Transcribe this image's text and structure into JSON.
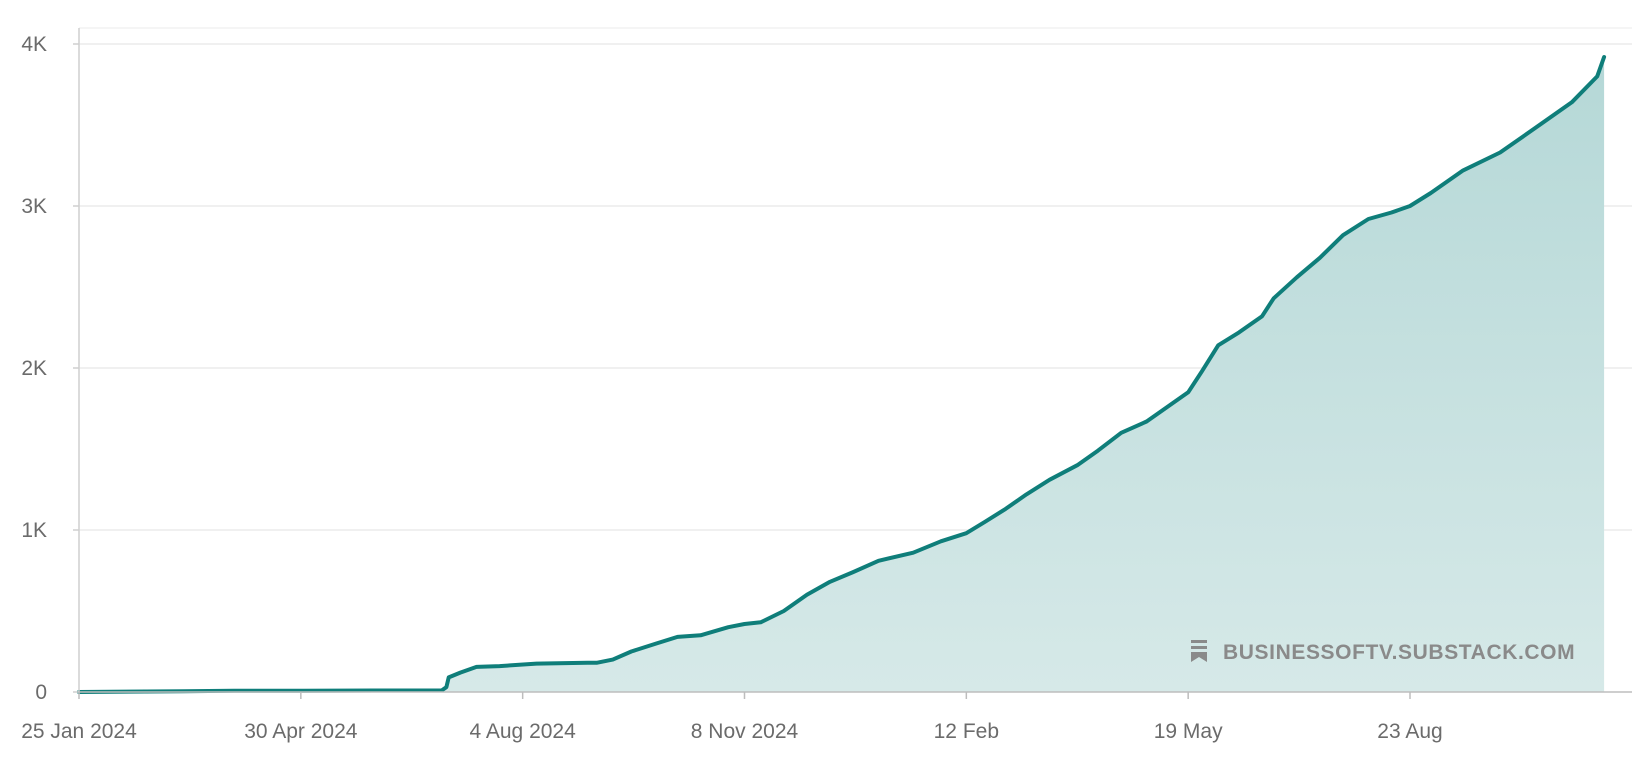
{
  "chart_data": {
    "type": "area",
    "title": "",
    "xlabel": "",
    "ylabel": "",
    "ylim": [
      0,
      4000
    ],
    "grid": true,
    "colors": {
      "line": "#0f7e7a",
      "fill": "#a9d1d0"
    },
    "y_ticks": [
      {
        "value": 0,
        "label": "0"
      },
      {
        "value": 1000,
        "label": "1K"
      },
      {
        "value": 2000,
        "label": "2K"
      },
      {
        "value": 3000,
        "label": "3K"
      },
      {
        "value": 4000,
        "label": "4K"
      }
    ],
    "x_ticks": [
      {
        "date": "2024-01-25",
        "label": "25 Jan 2024"
      },
      {
        "date": "2024-04-30",
        "label": "30 Apr 2024"
      },
      {
        "date": "2024-08-04",
        "label": "4 Aug 2024"
      },
      {
        "date": "2024-11-08",
        "label": "8 Nov 2024"
      },
      {
        "date": "2025-02-12",
        "label": "12 Feb"
      },
      {
        "date": "2025-05-19",
        "label": "19 May"
      },
      {
        "date": "2025-08-23",
        "label": "23 Aug"
      }
    ],
    "x_range": [
      "2024-01-25",
      "2025-11-15"
    ],
    "series": [
      {
        "x": [
          "2024-01-25",
          "2024-03-10",
          "2024-04-01",
          "2024-05-01",
          "2024-06-01",
          "2024-06-30",
          "2024-07-02",
          "2024-07-03",
          "2024-07-08",
          "2024-07-15",
          "2024-07-25",
          "2024-08-10",
          "2024-09-01",
          "2024-09-05",
          "2024-09-12",
          "2024-09-20",
          "2024-10-01",
          "2024-10-10",
          "2024-10-20",
          "2024-11-01",
          "2024-11-08",
          "2024-11-15",
          "2024-11-25",
          "2024-12-05",
          "2024-12-15",
          "2024-12-25",
          "2025-01-05",
          "2025-01-20",
          "2025-02-01",
          "2025-02-12",
          "2025-02-20",
          "2025-03-01",
          "2025-03-10",
          "2025-03-20",
          "2025-04-01",
          "2025-04-10",
          "2025-04-20",
          "2025-05-01",
          "2025-05-10",
          "2025-05-19",
          "2025-05-25",
          "2025-06-01",
          "2025-06-10",
          "2025-06-20",
          "2025-06-25",
          "2025-07-05",
          "2025-07-15",
          "2025-07-25",
          "2025-08-05",
          "2025-08-15",
          "2025-08-23",
          "2025-09-01",
          "2025-09-15",
          "2025-10-01",
          "2025-10-15",
          "2025-11-01",
          "2025-11-12",
          "2025-11-15"
        ],
        "y": [
          0,
          5,
          8,
          8,
          9,
          10,
          30,
          90,
          120,
          155,
          160,
          175,
          180,
          180,
          200,
          250,
          300,
          340,
          350,
          400,
          420,
          430,
          500,
          600,
          680,
          740,
          810,
          860,
          930,
          980,
          1050,
          1130,
          1220,
          1310,
          1400,
          1490,
          1600,
          1670,
          1760,
          1850,
          1980,
          2140,
          2220,
          2320,
          2430,
          2560,
          2680,
          2820,
          2920,
          2960,
          3000,
          3080,
          3220,
          3330,
          3470,
          3640,
          3800,
          3920
        ]
      }
    ]
  },
  "watermark": {
    "icon": "substack-bookmark-icon",
    "text": "BUSINESSOFTV.SUBSTACK.COM"
  }
}
